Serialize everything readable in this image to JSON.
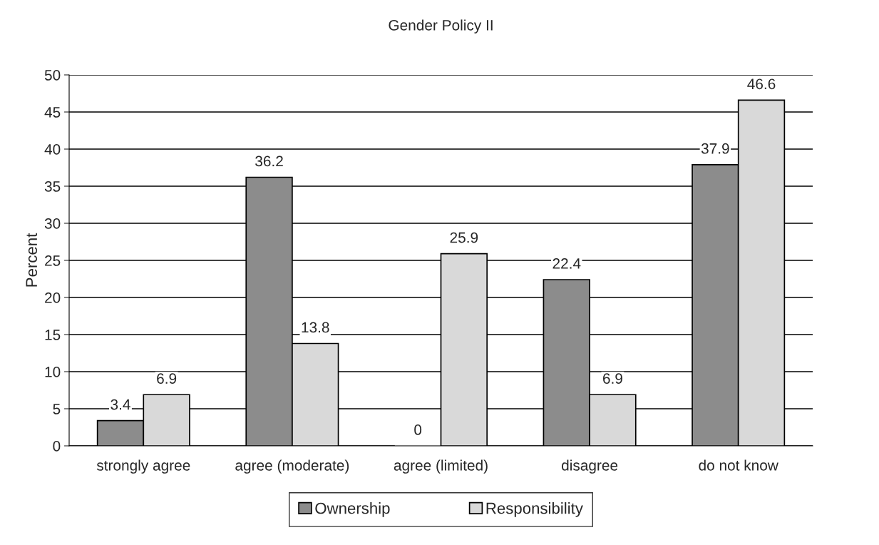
{
  "chart_data": {
    "type": "bar",
    "title": "Gender Policy II",
    "ylabel": "Percent",
    "categories": [
      "strongly agree",
      "agree (moderate)",
      "agree (limited)",
      "disagree",
      "do not know"
    ],
    "series": [
      {
        "name": "Ownership",
        "color": "#8c8c8c",
        "values": [
          3.4,
          36.2,
          0,
          22.4,
          37.9
        ]
      },
      {
        "name": "Responsibility",
        "color": "#d9d9d9",
        "values": [
          6.9,
          13.8,
          25.9,
          6.9,
          46.6
        ]
      }
    ],
    "ylim": [
      0,
      50
    ],
    "yticks": [
      0,
      5,
      10,
      15,
      20,
      25,
      30,
      35,
      40,
      45,
      50
    ],
    "grid": "y",
    "legend": "bottom",
    "data_labels": true
  }
}
